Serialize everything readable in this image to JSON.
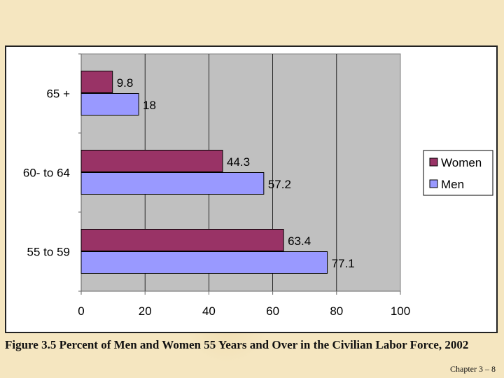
{
  "caption": "Figure 3.5 Percent of Men and Women 55 Years and Over in the Civilian Labor Force, 2002",
  "slide_number": "Chapter 3 – 8",
  "chart_data": {
    "type": "bar",
    "orientation": "horizontal",
    "categories": [
      "65 +",
      "60- to 64",
      "55 to 59"
    ],
    "series": [
      {
        "name": "Women",
        "color": "#993366",
        "values": [
          9.8,
          44.3,
          63.4
        ],
        "labels": [
          "9.8",
          "44.3",
          "63.4"
        ]
      },
      {
        "name": "Men",
        "color": "#9999ff",
        "values": [
          18,
          57.2,
          77.1
        ],
        "labels": [
          "18",
          "57.2",
          "77.1"
        ]
      }
    ],
    "xlim": [
      0,
      100
    ],
    "xticks": [
      0,
      20,
      40,
      60,
      80,
      100
    ],
    "xtick_labels": [
      "0",
      "20",
      "40",
      "60",
      "80",
      "100"
    ],
    "grid": true,
    "plot_background": "#c0c0c0",
    "legend_position": "right"
  }
}
